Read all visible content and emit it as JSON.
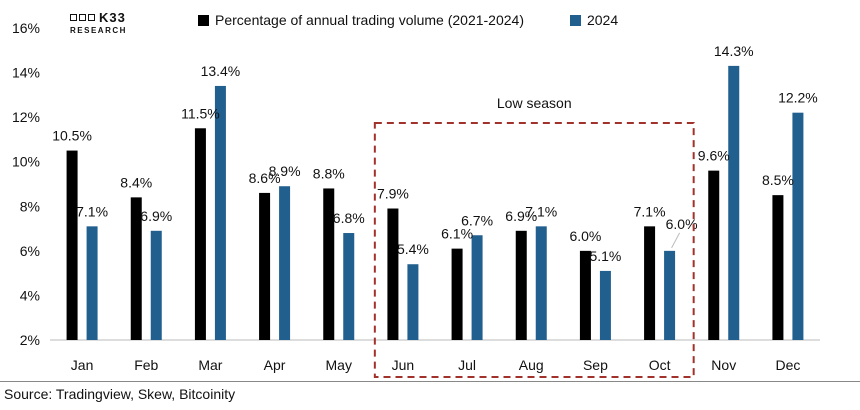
{
  "brand": {
    "name": "K33",
    "subtitle": "RESEARCH"
  },
  "source": "Source: Tradingview, Skew, Bitcoinity",
  "colors": {
    "series_1": "#000000",
    "series_2": "#215f8f",
    "annotation_box": "#a0312b"
  },
  "chart_data": {
    "type": "bar",
    "categories": [
      "Jan",
      "Feb",
      "Mar",
      "Apr",
      "May",
      "Jun",
      "Jul",
      "Aug",
      "Sep",
      "Oct",
      "Nov",
      "Dec"
    ],
    "series": [
      {
        "name": "Percentage of annual trading volume (2021-2024)",
        "values": [
          10.5,
          8.4,
          11.5,
          8.6,
          8.8,
          7.9,
          6.1,
          6.9,
          6.0,
          7.1,
          9.6,
          8.5
        ],
        "labels": [
          "10.5%",
          "8.4%",
          "11.5%",
          "8.6%",
          "8.8%",
          "7.9%",
          "6.1%",
          "6.9%",
          "6.0%",
          "7.1%",
          "9.6%",
          "8.5%"
        ]
      },
      {
        "name": "2024",
        "values": [
          7.1,
          6.9,
          13.4,
          8.9,
          6.8,
          5.4,
          6.7,
          7.1,
          5.1,
          6.0,
          14.3,
          12.2
        ],
        "labels": [
          "7.1%",
          "6.9%",
          "13.4%",
          "8.9%",
          "6.8%",
          "5.4%",
          "6.7%",
          "7.1%",
          "5.1%",
          "6.0%",
          "14.3%",
          "12.2%"
        ]
      }
    ],
    "ylim": [
      2,
      16
    ],
    "yticks": [
      2,
      4,
      6,
      8,
      10,
      12,
      14,
      16
    ],
    "ytick_labels": [
      "2%",
      "4%",
      "6%",
      "8%",
      "10%",
      "12%",
      "14%",
      "16%"
    ],
    "legend_position": "top",
    "grid": false,
    "annotations": [
      {
        "text": "Low season",
        "from": "Jun",
        "to": "Oct",
        "style": "dashed-box"
      }
    ]
  }
}
